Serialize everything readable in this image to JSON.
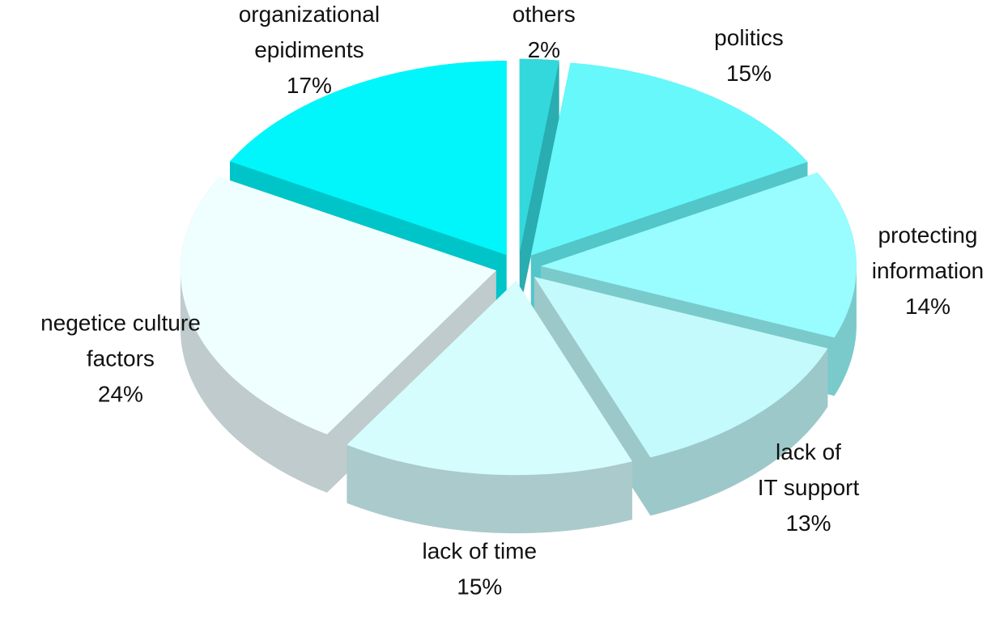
{
  "chart_data": {
    "type": "pie",
    "categories": [
      "others",
      "politics",
      "protecting\ninformation",
      "lack of\nIT support",
      "lack of time",
      "negetice culture\nfactors",
      "organizational\nepidiments"
    ],
    "values": [
      2,
      15,
      14,
      13,
      15,
      24,
      17
    ],
    "value_labels": [
      "2%",
      "15%",
      "14%",
      "13%",
      "15%",
      "24%",
      "17%"
    ],
    "colors": [
      "#33d8dc",
      "#66f8fb",
      "#99fcfe",
      "#c4fafb",
      "#d6fdfe",
      "#effeff",
      "#00f6fa"
    ]
  }
}
